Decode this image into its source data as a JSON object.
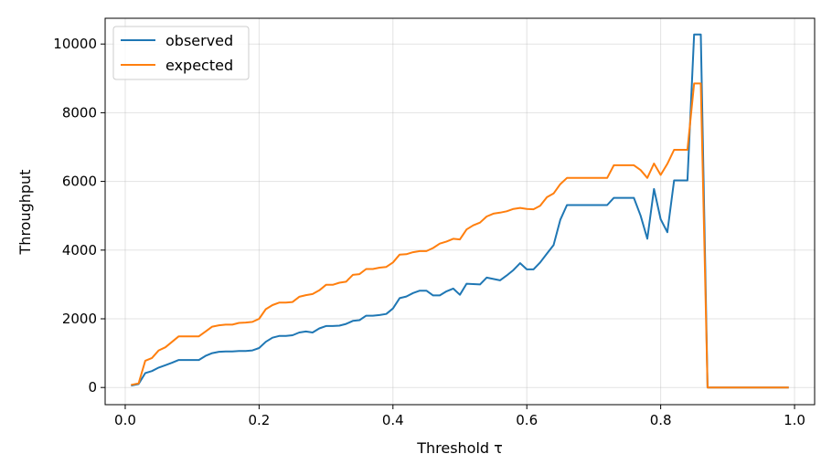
{
  "chart_data": {
    "type": "line",
    "xlabel": "Threshold τ",
    "ylabel": "Throughput",
    "xlim": [
      -0.03,
      1.03
    ],
    "ylim": [
      -500,
      10750
    ],
    "xticks": [
      0.0,
      0.2,
      0.4,
      0.6,
      0.8,
      1.0
    ],
    "xtick_labels": [
      "0.0",
      "0.2",
      "0.4",
      "0.6",
      "0.8",
      "1.0"
    ],
    "yticks": [
      0,
      2000,
      4000,
      6000,
      8000,
      10000
    ],
    "ytick_labels": [
      "0",
      "2000",
      "4000",
      "6000",
      "8000",
      "10000"
    ],
    "grid": true,
    "legend_position": "top-left",
    "x": [
      0.01,
      0.02,
      0.03,
      0.04,
      0.05,
      0.06,
      0.07,
      0.08,
      0.09,
      0.1,
      0.11,
      0.12,
      0.13,
      0.14,
      0.15,
      0.16,
      0.17,
      0.18,
      0.19,
      0.2,
      0.21,
      0.22,
      0.23,
      0.24,
      0.25,
      0.26,
      0.27,
      0.28,
      0.29,
      0.3,
      0.31,
      0.32,
      0.33,
      0.34,
      0.35,
      0.36,
      0.37,
      0.38,
      0.39,
      0.4,
      0.41,
      0.42,
      0.43,
      0.44,
      0.45,
      0.46,
      0.47,
      0.48,
      0.49,
      0.5,
      0.51,
      0.52,
      0.53,
      0.54,
      0.55,
      0.56,
      0.57,
      0.58,
      0.59,
      0.6,
      0.61,
      0.62,
      0.63,
      0.64,
      0.65,
      0.66,
      0.67,
      0.68,
      0.69,
      0.7,
      0.71,
      0.72,
      0.73,
      0.74,
      0.75,
      0.76,
      0.77,
      0.78,
      0.79,
      0.8,
      0.81,
      0.82,
      0.83,
      0.84,
      0.85,
      0.86,
      0.87,
      0.88,
      0.89,
      0.9,
      0.91,
      0.92,
      0.93,
      0.94,
      0.95,
      0.96,
      0.97,
      0.98,
      0.99
    ],
    "series": [
      {
        "name": "observed",
        "color": "#1f77b4",
        "values": [
          60,
          100,
          420,
          480,
          580,
          650,
          720,
          800,
          800,
          800,
          800,
          920,
          1000,
          1040,
          1050,
          1050,
          1060,
          1060,
          1080,
          1150,
          1330,
          1450,
          1500,
          1500,
          1520,
          1600,
          1630,
          1600,
          1720,
          1790,
          1790,
          1800,
          1850,
          1940,
          1960,
          2090,
          2090,
          2110,
          2140,
          2300,
          2600,
          2650,
          2750,
          2820,
          2820,
          2680,
          2680,
          2800,
          2880,
          2700,
          3020,
          3010,
          3000,
          3200,
          3160,
          3120,
          3260,
          3420,
          3620,
          3440,
          3440,
          3640,
          3900,
          4150,
          4880,
          5310,
          5310,
          5310,
          5310,
          5310,
          5310,
          5310,
          5520,
          5520,
          5520,
          5520,
          5000,
          4330,
          5780,
          4900,
          4520,
          6030,
          6030,
          6030,
          10280,
          10280,
          0,
          0,
          0,
          0,
          0,
          0,
          0,
          0,
          0,
          0,
          0,
          0,
          0
        ]
      },
      {
        "name": "expected",
        "color": "#ff7f0e",
        "values": [
          80,
          120,
          780,
          860,
          1080,
          1170,
          1330,
          1490,
          1490,
          1490,
          1490,
          1630,
          1770,
          1810,
          1830,
          1830,
          1880,
          1890,
          1910,
          2000,
          2280,
          2400,
          2470,
          2470,
          2490,
          2640,
          2690,
          2720,
          2830,
          2990,
          2990,
          3050,
          3080,
          3280,
          3300,
          3450,
          3450,
          3490,
          3510,
          3640,
          3870,
          3880,
          3940,
          3970,
          3970,
          4060,
          4190,
          4250,
          4330,
          4310,
          4600,
          4720,
          4800,
          4980,
          5060,
          5090,
          5130,
          5200,
          5230,
          5200,
          5190,
          5290,
          5540,
          5650,
          5920,
          6100,
          6100,
          6100,
          6100,
          6100,
          6100,
          6100,
          6470,
          6470,
          6470,
          6470,
          6330,
          6100,
          6520,
          6190,
          6510,
          6920,
          6920,
          6920,
          8850,
          8850,
          0,
          0,
          0,
          0,
          0,
          0,
          0,
          0,
          0,
          0,
          0,
          0,
          0
        ]
      }
    ]
  }
}
